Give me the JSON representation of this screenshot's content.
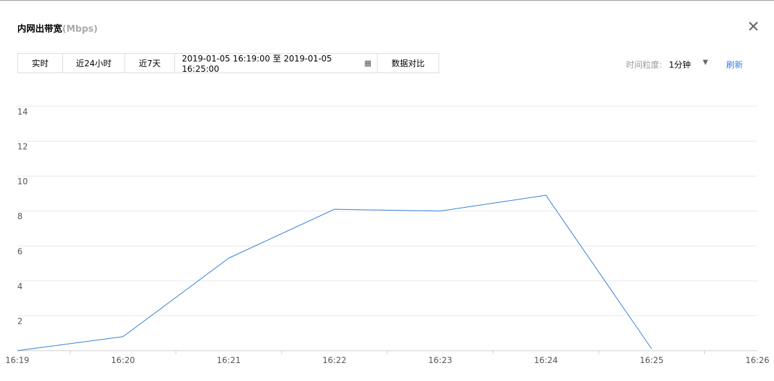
{
  "header": {
    "title": "内网出带宽",
    "unit": "(Mbps)"
  },
  "toolbar": {
    "buttons": [
      "实时",
      "近24小时",
      "近7天"
    ],
    "date_range": "2019-01-05 16:19:00 至 2019-01-05 16:25:00",
    "compare": "数据对比"
  },
  "granularity": {
    "label": "时间粒度:",
    "value": "1分钟"
  },
  "refresh": "刷新",
  "chart_data": {
    "type": "line",
    "categories": [
      "16:19",
      "16:20",
      "16:21",
      "16:22",
      "16:23",
      "16:24",
      "16:25",
      "16:26"
    ],
    "values": [
      0,
      0.8,
      5.3,
      8.1,
      8.0,
      8.9,
      0.1,
      null
    ],
    "color": "#2f7fd8",
    "ylim": [
      0,
      14
    ],
    "yticks": [
      2,
      4,
      6,
      8,
      10,
      12,
      14
    ],
    "grid": true
  }
}
